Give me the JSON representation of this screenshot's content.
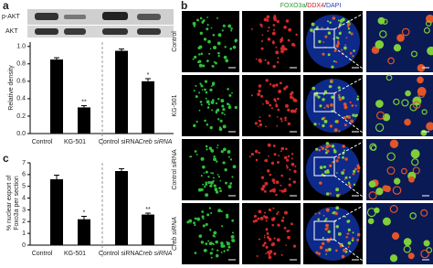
{
  "figure": {
    "panel_labels": {
      "a": "a",
      "b": "b",
      "c": "c"
    },
    "blot_labels": [
      "p-AKT",
      "AKT"
    ],
    "micro_header": {
      "green": "FOXO3a",
      "sep1": "/",
      "red": "DDX4",
      "sep2": "/",
      "blue": "DAPI"
    },
    "row_labels": [
      "Control",
      "KG-501",
      "Control siRNA",
      "Creb siRNA"
    ]
  },
  "chart_data": [
    {
      "type": "bar",
      "ylabel": "Relative density",
      "categories": [
        "Control",
        "KG-501",
        "Control siRNA",
        "Creb siRNA"
      ],
      "values": [
        0.85,
        0.3,
        0.95,
        0.6
      ],
      "errors": [
        0.02,
        0.02,
        0.02,
        0.03
      ],
      "significance": [
        null,
        "**",
        null,
        "*"
      ],
      "color": "#000000",
      "ylim": [
        0,
        1.05
      ],
      "yticks": [
        {
          "value": 0,
          "label": "0.0"
        },
        0.2,
        0.4,
        0.6,
        0.8,
        {
          "value": 1,
          "label": "1.0"
        }
      ]
    },
    {
      "type": "bar",
      "ylabel": [
        "% nuclear export of",
        "Foxo3a per section"
      ],
      "categories": [
        "Control",
        "KG-501",
        "Control siRNA",
        "Creb siRNA"
      ],
      "values": [
        5.6,
        2.2,
        6.3,
        2.6
      ],
      "errors": [
        0.35,
        0.25,
        0.2,
        0.12
      ],
      "significance": [
        null,
        "*",
        null,
        "**"
      ],
      "color": "#000000",
      "ylim": [
        0,
        7
      ],
      "yticks": [
        0,
        1,
        2,
        3,
        4,
        5,
        6,
        7
      ]
    }
  ]
}
